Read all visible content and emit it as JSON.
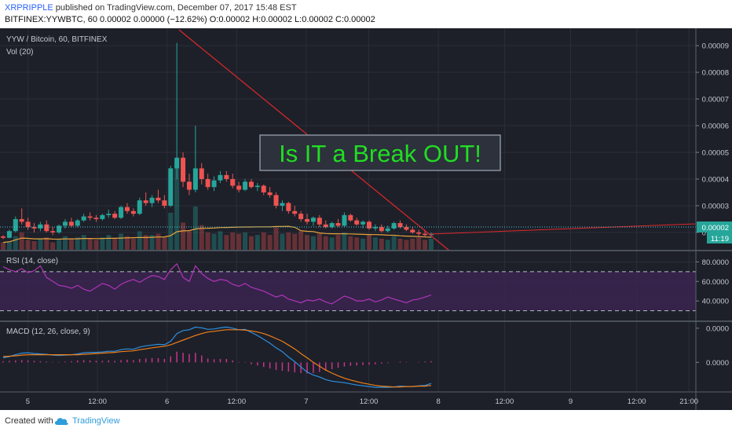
{
  "header": {
    "author": "XRPRIPPLE",
    "published": " published on TradingView.com, December 07, 2017 15:48 EST",
    "ticker_line": "BITFINEX:YYWBTC, 60  0.00002  0.00000 (−12.62%)  O:0.00002  H:0.00002  L:0.00002  C:0.00002"
  },
  "footer": {
    "created": "Created with",
    "brand": "TradingView"
  },
  "chart_data": {
    "type": "candlestick",
    "main_panel": {
      "legend": [
        "YYW / Bitcoin, 60, BITFINEX",
        "Vol (20)"
      ],
      "annotation": "Is IT a Break OUT!",
      "y_ticks": [
        "0.00009",
        "0.00008",
        "0.00007",
        "0.00006",
        "0.00005",
        "0.00004",
        "0.00003",
        "0.00002"
      ],
      "ylim": [
        1.35e-05,
        9.65e-05
      ],
      "last_price_label": "0.00002",
      "countdown_label": "11:19",
      "candles": [
        [
          1.85e-05,
          1.9e-05,
          1.75e-05,
          1.8e-05
        ],
        [
          1.8e-05,
          2.1e-05,
          1.78e-05,
          2.05e-05
        ],
        [
          2.05e-05,
          2.6e-05,
          2e-05,
          2.5e-05
        ],
        [
          2.5e-05,
          2.9e-05,
          2.3e-05,
          2.4e-05
        ],
        [
          2.4e-05,
          2.55e-05,
          2.1e-05,
          2.2e-05
        ],
        [
          2.2e-05,
          2.35e-05,
          2e-05,
          2.15e-05
        ],
        [
          2.15e-05,
          2.4e-05,
          2.05e-05,
          2.3e-05
        ],
        [
          2.3e-05,
          2.45e-05,
          2e-05,
          2.05e-05
        ],
        [
          2.05e-05,
          2.2e-05,
          1.9e-05,
          2e-05
        ],
        [
          2e-05,
          2.3e-05,
          1.95e-05,
          2.25e-05
        ],
        [
          2.25e-05,
          2.5e-05,
          2.15e-05,
          2.4e-05
        ],
        [
          2.4e-05,
          2.55e-05,
          2.2e-05,
          2.25e-05
        ],
        [
          2.25e-05,
          2.5e-05,
          2.2e-05,
          2.45e-05
        ],
        [
          2.45e-05,
          2.7e-05,
          2.4e-05,
          2.6e-05
        ],
        [
          2.6e-05,
          2.75e-05,
          2.45e-05,
          2.55e-05
        ],
        [
          2.55e-05,
          2.65e-05,
          2.4e-05,
          2.5e-05
        ],
        [
          2.5e-05,
          2.7e-05,
          2.45e-05,
          2.65e-05
        ],
        [
          2.65e-05,
          2.85e-05,
          2.55e-05,
          2.7e-05
        ],
        [
          2.7e-05,
          2.8e-05,
          2.5e-05,
          2.55e-05
        ],
        [
          2.55e-05,
          3e-05,
          2.5e-05,
          2.95e-05
        ],
        [
          2.95e-05,
          3.1e-05,
          2.7e-05,
          2.8e-05
        ],
        [
          2.8e-05,
          2.9e-05,
          2.6e-05,
          2.7e-05
        ],
        [
          2.7e-05,
          3.3e-05,
          2.65e-05,
          3.2e-05
        ],
        [
          3.2e-05,
          3.5e-05,
          3e-05,
          3.1e-05
        ],
        [
          3.1e-05,
          3.4e-05,
          2.95e-05,
          3.3e-05
        ],
        [
          3.3e-05,
          3.6e-05,
          3.1e-05,
          3.2e-05
        ],
        [
          3.2e-05,
          3.4e-05,
          2.9e-05,
          3e-05
        ],
        [
          3e-05,
          4.5e-05,
          2.95e-05,
          4.4e-05
        ],
        [
          4.4e-05,
          9.1e-05,
          4e-05,
          4.8e-05
        ],
        [
          4.8e-05,
          5e-05,
          3.7e-05,
          3.9e-05
        ],
        [
          3.9e-05,
          4.2e-05,
          3.4e-05,
          3.6e-05
        ],
        [
          3.6e-05,
          6e-05,
          3.5e-05,
          4.4e-05
        ],
        [
          4.4e-05,
          4.6e-05,
          3.8e-05,
          4e-05
        ],
        [
          4e-05,
          4.2e-05,
          3.6e-05,
          3.7e-05
        ],
        [
          3.7e-05,
          4.1e-05,
          3.55e-05,
          3.95e-05
        ],
        [
          3.95e-05,
          4.3e-05,
          3.85e-05,
          4.15e-05
        ],
        [
          4.15e-05,
          4.3e-05,
          3.9e-05,
          4e-05
        ],
        [
          4e-05,
          4.2e-05,
          3.65e-05,
          3.75e-05
        ],
        [
          3.75e-05,
          3.9e-05,
          3.5e-05,
          3.6e-05
        ],
        [
          3.6e-05,
          4e-05,
          3.55e-05,
          3.9e-05
        ],
        [
          3.9e-05,
          4e-05,
          3.65e-05,
          3.7e-05
        ],
        [
          3.7e-05,
          3.85e-05,
          3.55e-05,
          3.75e-05
        ],
        [
          3.75e-05,
          3.8e-05,
          3.4e-05,
          3.5e-05
        ],
        [
          3.5e-05,
          3.7e-05,
          3.3e-05,
          3.4e-05
        ],
        [
          3.4e-05,
          3.5e-05,
          2.9e-05,
          3e-05
        ],
        [
          3e-05,
          3.2e-05,
          2.8e-05,
          3.1e-05
        ],
        [
          3.1e-05,
          3.15e-05,
          2.7e-05,
          2.8e-05
        ],
        [
          2.8e-05,
          3e-05,
          2.6e-05,
          2.7e-05
        ],
        [
          2.7e-05,
          2.8e-05,
          2.4e-05,
          2.5e-05
        ],
        [
          2.5e-05,
          2.7e-05,
          2.3e-05,
          2.4e-05
        ],
        [
          2.4e-05,
          2.6e-05,
          2.25e-05,
          2.55e-05
        ],
        [
          2.55e-05,
          2.65e-05,
          2.2e-05,
          2.3e-05
        ],
        [
          2.3e-05,
          2.45e-05,
          2.15e-05,
          2.2e-05
        ],
        [
          2.2e-05,
          2.4e-05,
          2.15e-05,
          2.35e-05
        ],
        [
          2.35e-05,
          2.5e-05,
          2.2e-05,
          2.25e-05
        ],
        [
          2.25e-05,
          2.75e-05,
          2.2e-05,
          2.65e-05
        ],
        [
          2.65e-05,
          2.7e-05,
          2.4e-05,
          2.45e-05
        ],
        [
          2.45e-05,
          2.55e-05,
          2.25e-05,
          2.3e-05
        ],
        [
          2.3e-05,
          2.45e-05,
          2.15e-05,
          2.4e-05
        ],
        [
          2.4e-05,
          2.45e-05,
          2.1e-05,
          2.15e-05
        ],
        [
          2.15e-05,
          2.3e-05,
          2.05e-05,
          2.2e-05
        ],
        [
          2.2e-05,
          2.3e-05,
          2e-05,
          2.05e-05
        ],
        [
          2.05e-05,
          2.25e-05,
          2e-05,
          2.15e-05
        ],
        [
          2.15e-05,
          2.4e-05,
          2.1e-05,
          2.35e-05
        ],
        [
          2.35e-05,
          2.45e-05,
          2.15e-05,
          2.2e-05
        ],
        [
          2.2e-05,
          2.3e-05,
          2.05e-05,
          2.1e-05
        ],
        [
          2.1e-05,
          2.2e-05,
          1.95e-05,
          2e-05
        ],
        [
          2e-05,
          2.1e-05,
          1.85e-05,
          1.95e-05
        ],
        [
          1.95e-05,
          2.1e-05,
          1.85e-05,
          1.9e-05
        ],
        [
          1.9e-05,
          2e-05,
          1.8e-05,
          1.95e-05
        ]
      ],
      "volume": [
        6,
        7,
        11,
        14,
        8,
        7,
        9,
        10,
        6,
        8,
        11,
        9,
        10,
        12,
        9,
        8,
        10,
        12,
        9,
        13,
        11,
        9,
        15,
        12,
        12,
        13,
        10,
        30,
        70,
        22,
        15,
        35,
        20,
        14,
        13,
        15,
        12,
        14,
        13,
        14,
        11,
        12,
        14,
        12,
        18,
        13,
        14,
        13,
        15,
        12,
        11,
        13,
        11,
        10,
        12,
        14,
        11,
        10,
        9,
        12,
        10,
        9,
        8,
        11,
        9,
        8,
        9,
        10,
        8,
        9
      ]
    },
    "rsi_panel": {
      "legend": "RSI (14, close)",
      "y_ticks": [
        "80.0000",
        "60.0000",
        "40.0000"
      ],
      "ylim": [
        20,
        90
      ],
      "bands": [
        70,
        30
      ],
      "values": [
        75,
        72,
        70,
        73,
        69,
        71,
        76,
        64,
        60,
        56,
        55,
        53,
        56,
        52,
        50,
        54,
        58,
        56,
        52,
        57,
        60,
        62,
        59,
        63,
        66,
        65,
        62,
        72,
        78,
        64,
        60,
        76,
        68,
        63,
        60,
        62,
        61,
        57,
        55,
        58,
        54,
        52,
        50,
        47,
        44,
        46,
        42,
        40,
        38,
        41,
        40,
        42,
        39,
        37,
        41,
        45,
        43,
        40,
        40,
        42,
        39,
        41,
        44,
        42,
        40,
        38,
        41,
        42,
        44,
        46
      ]
    },
    "macd_panel": {
      "legend": "MACD (12, 26, close, 9)",
      "y_ticks": [
        "0.0000",
        "0.0000"
      ],
      "ylim": [
        -7.5,
        10.3
      ],
      "macd": [
        1.2,
        1.5,
        2.0,
        2.4,
        2.5,
        2.3,
        2.2,
        2.1,
        1.9,
        1.8,
        1.9,
        2.0,
        2.2,
        2.5,
        2.6,
        2.6,
        2.7,
        2.9,
        2.9,
        3.3,
        3.5,
        3.4,
        4.0,
        4.3,
        4.5,
        4.7,
        4.6,
        5.5,
        7.5,
        8.3,
        8.5,
        9.2,
        9.0,
        8.6,
        8.7,
        9.0,
        9.2,
        8.9,
        8.5,
        8.6,
        7.8,
        7.0,
        6.0,
        5.0,
        3.8,
        2.8,
        1.4,
        0.2,
        -1.2,
        -2.5,
        -3.3,
        -3.8,
        -4.5,
        -4.9,
        -5.1,
        -5.3,
        -5.6,
        -5.9,
        -6.1,
        -6.3,
        -6.5,
        -6.5,
        -6.5,
        -6.4,
        -6.2,
        -6.3,
        -6.3,
        -6.1,
        -6.0,
        -5.5
      ],
      "signal": [
        1.5,
        1.6,
        1.7,
        1.9,
        2.0,
        2.0,
        2.0,
        2.0,
        2.0,
        2.0,
        2.0,
        2.0,
        2.0,
        2.1,
        2.2,
        2.3,
        2.4,
        2.5,
        2.6,
        2.8,
        2.9,
        3.0,
        3.3,
        3.5,
        3.8,
        4.0,
        4.2,
        4.6,
        5.2,
        5.8,
        6.4,
        7.0,
        7.5,
        7.9,
        8.1,
        8.3,
        8.5,
        8.5,
        8.5,
        8.4,
        8.2,
        7.9,
        7.5,
        6.9,
        6.2,
        5.5,
        4.5,
        3.5,
        2.3,
        1.2,
        0.0,
        -1.0,
        -2.0,
        -2.8,
        -3.5,
        -4.1,
        -4.6,
        -5.0,
        -5.4,
        -5.7,
        -6.0,
        -6.2,
        -6.3,
        -6.4,
        -6.4,
        -6.3,
        -6.3,
        -6.2,
        -6.2,
        -6.0
      ],
      "histogram": [
        0.3,
        0.4,
        0.5,
        0.6,
        0.5,
        0.4,
        0.3,
        0.2,
        0.1,
        0.1,
        0.2,
        0.3,
        0.5,
        0.6,
        0.5,
        0.4,
        0.4,
        0.5,
        0.4,
        0.6,
        0.7,
        0.6,
        0.9,
        1.0,
        1.1,
        1.1,
        0.9,
        1.6,
        2.8,
        2.5,
        2.2,
        2.5,
        1.8,
        1.0,
        0.8,
        0.9,
        0.9,
        0.5,
        0.1,
        -0.1,
        -0.5,
        -0.8,
        -1.2,
        -1.6,
        -2.0,
        -2.2,
        -2.4,
        -2.6,
        -2.8,
        -2.9,
        -2.8,
        -2.5,
        -2.2,
        -1.8,
        -1.4,
        -1.1,
        -0.9,
        -0.8,
        -0.7,
        -0.6,
        -0.5,
        -0.3,
        -0.2,
        0.0,
        0.2,
        0.1,
        0.0,
        0.1,
        0.2,
        0.3
      ]
    },
    "x_ticks": [
      {
        "label": "5",
        "t": 0.04
      },
      {
        "label": "12:00",
        "t": 0.14
      },
      {
        "label": "6",
        "t": 0.24
      },
      {
        "label": "12:00",
        "t": 0.34
      },
      {
        "label": "7",
        "t": 0.44
      },
      {
        "label": "12:00",
        "t": 0.53
      },
      {
        "label": "8",
        "t": 0.63
      },
      {
        "label": "12:00",
        "t": 0.725
      },
      {
        "label": "9",
        "t": 0.82
      },
      {
        "label": "12:00",
        "t": 0.915
      },
      {
        "label": "21:00",
        "t": 0.99
      }
    ]
  }
}
